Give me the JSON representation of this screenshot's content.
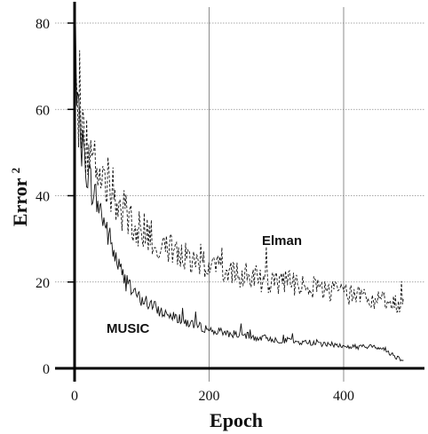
{
  "chart_data": {
    "type": "line",
    "xlabel": "Epoch",
    "ylabel": "Error",
    "ylabel_sup": "2",
    "xlim": [
      -5,
      500
    ],
    "ylim": [
      0,
      85
    ],
    "xticks": [
      0,
      200,
      400
    ],
    "yticks": [
      0,
      20,
      40,
      60,
      80
    ],
    "grid": true,
    "series": [
      {
        "name": "Elman",
        "style": "dashed",
        "x": [
          0,
          10,
          20,
          30,
          40,
          50,
          60,
          70,
          80,
          90,
          100,
          110,
          120,
          130,
          140,
          150,
          160,
          170,
          180,
          190,
          200,
          210,
          220,
          230,
          240,
          250,
          260,
          270,
          280,
          290,
          300,
          310,
          320,
          330,
          340,
          350,
          360,
          370,
          380,
          390,
          400,
          410,
          420,
          430,
          440,
          450,
          460,
          470,
          480,
          490
        ],
        "values": [
          64,
          55,
          50,
          48,
          46,
          43,
          40,
          37,
          35,
          33,
          32,
          31,
          30,
          29,
          28,
          28,
          27,
          26,
          25,
          24,
          24,
          23,
          23,
          22,
          22,
          21,
          21,
          21,
          20,
          20,
          20,
          20,
          20,
          19,
          19,
          19,
          19,
          18,
          18,
          18,
          17,
          17,
          17,
          17,
          16,
          16,
          16,
          15,
          15,
          15
        ]
      },
      {
        "name": "MUSIC",
        "style": "solid",
        "x": [
          0,
          10,
          20,
          30,
          40,
          50,
          60,
          70,
          80,
          90,
          100,
          110,
          120,
          130,
          140,
          150,
          160,
          170,
          180,
          190,
          200,
          210,
          220,
          230,
          240,
          250,
          260,
          270,
          280,
          290,
          300,
          310,
          320,
          330,
          340,
          350,
          360,
          370,
          380,
          390,
          400,
          410,
          420,
          430,
          440,
          450,
          460,
          470,
          480,
          490
        ],
        "values": [
          64,
          52,
          45,
          40,
          36,
          31,
          26,
          22,
          19,
          17,
          16,
          15,
          14,
          13,
          12.5,
          12,
          11,
          10.5,
          10,
          9.5,
          9,
          8.5,
          8.5,
          8,
          8,
          7.5,
          7.5,
          7,
          7,
          7,
          6.5,
          6.5,
          6.5,
          6,
          6,
          6,
          6,
          5.5,
          5.5,
          5.5,
          5,
          5,
          5,
          5,
          5,
          5,
          4.5,
          3.5,
          2.5,
          2
        ]
      }
    ]
  }
}
